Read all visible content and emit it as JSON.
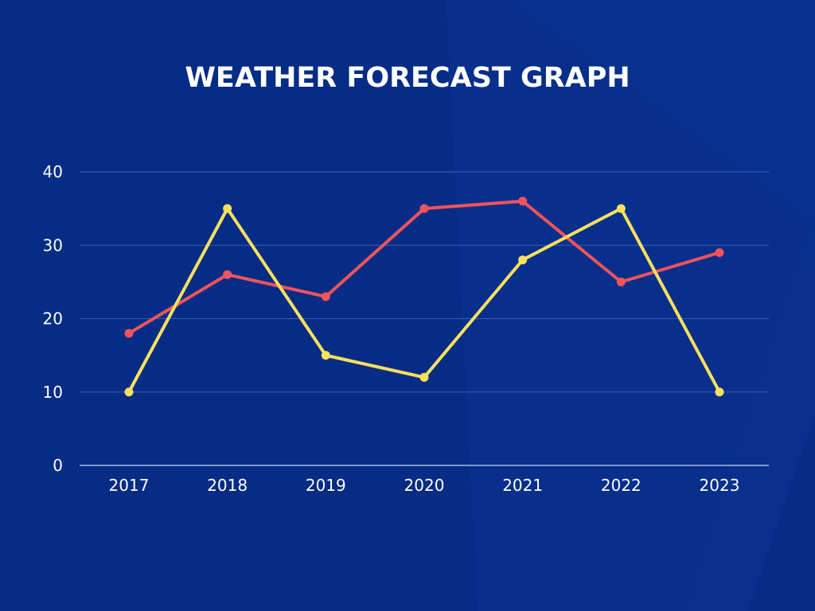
{
  "colors": {
    "background": "#062c85",
    "grid": "#3b5fb4",
    "axis": "#a9bbe6",
    "text": "#ffffff"
  },
  "chart_data": {
    "type": "line",
    "title": "WEATHER FORECAST GRAPH",
    "xlabel": "",
    "ylabel": "",
    "categories": [
      "2017",
      "2018",
      "2019",
      "2020",
      "2021",
      "2022",
      "2023"
    ],
    "ylim": [
      0,
      40
    ],
    "yticks": [
      "0",
      "10",
      "20",
      "30",
      "40"
    ],
    "grid": true,
    "legend": "none",
    "series": [
      {
        "color": "#f2545b",
        "values": [
          18,
          26,
          23,
          35,
          36,
          25,
          29
        ]
      },
      {
        "color": "#f9e05e",
        "values": [
          10,
          35,
          15,
          12,
          28,
          35,
          10
        ]
      }
    ]
  }
}
